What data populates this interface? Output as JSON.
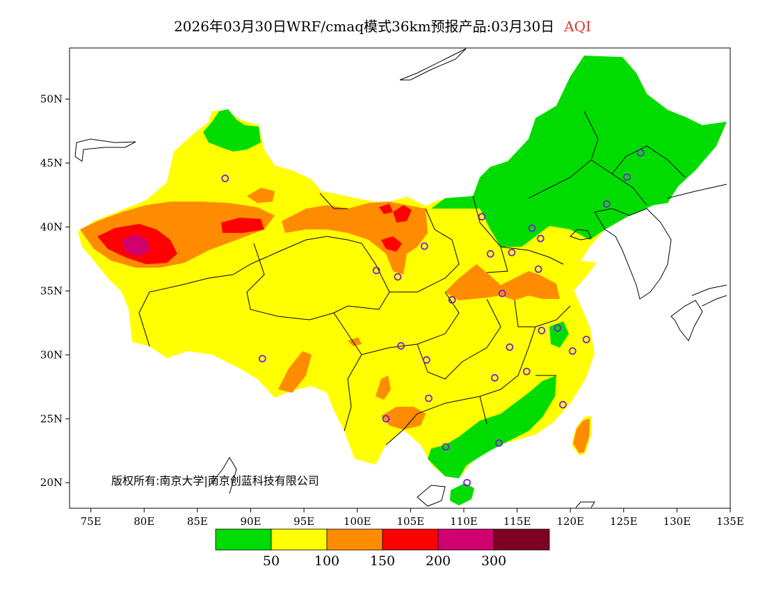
{
  "title": {
    "text": "2026年03月30日WRF/cmaq模式36km预报产品:03月30日",
    "product": "AQI"
  },
  "axes": {
    "x_ticks": [
      "75E",
      "80E",
      "85E",
      "90E",
      "95E",
      "100E",
      "105E",
      "110E",
      "115E",
      "120E",
      "125E",
      "130E",
      "135E"
    ],
    "y_ticks": [
      "50N",
      "45N",
      "40N",
      "35N",
      "30N",
      "25N",
      "20N"
    ],
    "lon_range": [
      73,
      135
    ],
    "lat_range": [
      18,
      54
    ]
  },
  "copyright": "版权所有:南京大学|南京创蓝科技有限公司",
  "legend": {
    "colors": [
      "#00dc00",
      "#ffff00",
      "#ff8c00",
      "#ff0000",
      "#d0006e",
      "#7e0023"
    ],
    "labels": [
      "50",
      "100",
      "150",
      "200",
      "300"
    ]
  },
  "stations": [
    {
      "lon": 87.6,
      "lat": 43.8
    },
    {
      "lon": 91.1,
      "lat": 29.7
    },
    {
      "lon": 101.8,
      "lat": 36.6
    },
    {
      "lon": 103.8,
      "lat": 36.1
    },
    {
      "lon": 106.3,
      "lat": 38.5
    },
    {
      "lon": 111.7,
      "lat": 40.8
    },
    {
      "lon": 112.5,
      "lat": 37.9
    },
    {
      "lon": 114.5,
      "lat": 38.0
    },
    {
      "lon": 116.4,
      "lat": 39.9
    },
    {
      "lon": 117.2,
      "lat": 39.1
    },
    {
      "lon": 117.0,
      "lat": 36.7
    },
    {
      "lon": 113.6,
      "lat": 34.8
    },
    {
      "lon": 108.9,
      "lat": 34.3
    },
    {
      "lon": 104.1,
      "lat": 30.7
    },
    {
      "lon": 106.5,
      "lat": 29.6
    },
    {
      "lon": 114.3,
      "lat": 30.6
    },
    {
      "lon": 117.3,
      "lat": 31.9
    },
    {
      "lon": 118.8,
      "lat": 32.1
    },
    {
      "lon": 121.5,
      "lat": 31.2
    },
    {
      "lon": 120.2,
      "lat": 30.3
    },
    {
      "lon": 112.9,
      "lat": 28.2
    },
    {
      "lon": 115.9,
      "lat": 28.7
    },
    {
      "lon": 119.3,
      "lat": 26.1
    },
    {
      "lon": 113.3,
      "lat": 23.1
    },
    {
      "lon": 108.3,
      "lat": 22.8
    },
    {
      "lon": 106.7,
      "lat": 26.6
    },
    {
      "lon": 102.7,
      "lat": 25.0
    },
    {
      "lon": 110.3,
      "lat": 20.0
    },
    {
      "lon": 123.4,
      "lat": 41.8
    },
    {
      "lon": 125.3,
      "lat": 43.9
    },
    {
      "lon": 126.6,
      "lat": 45.8
    }
  ]
}
